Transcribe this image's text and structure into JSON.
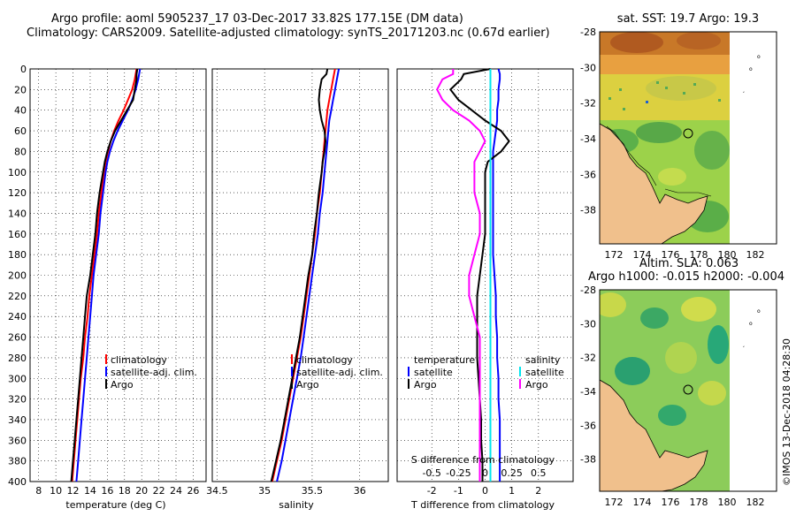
{
  "title": {
    "line1": "Argo profile: aoml 5905237_17 03-Dec-2017 33.82S 177.15E (DM data)",
    "line2": "Climatology: CARS2009. Satellite-adjusted climatology: synTS_20171203.nc (0.67d earlier)"
  },
  "colors": {
    "climatology": "#ff0000",
    "satellite": "#0000ff",
    "argo": "#000000",
    "sal_satellite": "#00e5ee",
    "sal_argo": "#ff00ff"
  },
  "chart_data": [
    {
      "type": "line",
      "id": "temperature",
      "xlabel": "temperature (deg C)",
      "ylabel": "",
      "xlim": [
        7,
        27.5
      ],
      "ylim": [
        400,
        0
      ],
      "xticks": [
        "8",
        "10",
        "12",
        "14",
        "16",
        "18",
        "20",
        "22",
        "24",
        "26"
      ],
      "xtick_values": [
        8,
        10,
        12,
        14,
        16,
        18,
        20,
        22,
        24,
        26
      ],
      "yticks": [
        "0",
        "20",
        "40",
        "60",
        "80",
        "100",
        "120",
        "140",
        "160",
        "180",
        "200",
        "220",
        "240",
        "260",
        "280",
        "300",
        "320",
        "340",
        "360",
        "380",
        "400"
      ],
      "ytick_values": [
        0,
        20,
        40,
        60,
        80,
        100,
        120,
        140,
        160,
        180,
        200,
        220,
        240,
        260,
        280,
        300,
        320,
        340,
        360,
        380,
        400
      ],
      "depth": [
        0,
        5,
        10,
        20,
        30,
        40,
        50,
        60,
        70,
        80,
        90,
        100,
        120,
        140,
        160,
        180,
        200,
        220,
        240,
        260,
        280,
        300,
        320,
        340,
        360,
        380,
        400
      ],
      "series": [
        {
          "name": "climatology",
          "color": "#ff0000",
          "values": [
            19.4,
            19.3,
            19.2,
            18.9,
            18.4,
            17.9,
            17.3,
            16.8,
            16.4,
            16.1,
            15.8,
            15.6,
            15.3,
            15.0,
            14.8,
            14.5,
            14.2,
            13.9,
            13.7,
            13.4,
            13.2,
            12.9,
            12.7,
            12.5,
            12.3,
            12.1,
            11.9
          ]
        },
        {
          "name": "satellite-adj. clim.",
          "color": "#0000ff",
          "values": [
            19.8,
            19.7,
            19.6,
            19.3,
            18.9,
            18.4,
            17.8,
            17.2,
            16.7,
            16.3,
            16.0,
            15.8,
            15.5,
            15.2,
            15.0,
            14.7,
            14.4,
            14.2,
            14.0,
            13.8,
            13.6,
            13.4,
            13.2,
            13.0,
            12.8,
            12.6,
            12.4
          ]
        },
        {
          "name": "Argo",
          "color": "#000000",
          "values": [
            19.5,
            19.4,
            19.4,
            19.2,
            19.0,
            18.3,
            17.6,
            16.9,
            16.4,
            16.0,
            15.7,
            15.5,
            15.1,
            14.8,
            14.6,
            14.3,
            14.0,
            13.6,
            13.4,
            13.2,
            13.0,
            12.8,
            12.6,
            12.4,
            12.2,
            12.0,
            11.8
          ]
        }
      ],
      "legend": [
        "climatology",
        "satellite-adj. clim.",
        "Argo"
      ]
    },
    {
      "type": "line",
      "id": "salinity",
      "xlabel": "salinity",
      "xlim": [
        34.45,
        36.3
      ],
      "ylim": [
        400,
        0
      ],
      "xticks": [
        "34.5",
        "35",
        "35.5",
        "36"
      ],
      "xtick_values": [
        34.5,
        35,
        35.5,
        36
      ],
      "depth": [
        0,
        5,
        10,
        20,
        30,
        40,
        50,
        60,
        70,
        80,
        90,
        100,
        120,
        140,
        160,
        180,
        200,
        220,
        240,
        260,
        280,
        300,
        320,
        340,
        360,
        380,
        400
      ],
      "series": [
        {
          "name": "climatology",
          "color": "#ff0000",
          "values": [
            35.74,
            35.73,
            35.72,
            35.7,
            35.68,
            35.66,
            35.65,
            35.64,
            35.63,
            35.62,
            35.61,
            35.6,
            35.58,
            35.55,
            35.53,
            35.5,
            35.47,
            35.44,
            35.41,
            35.38,
            35.34,
            35.3,
            35.26,
            35.22,
            35.18,
            35.13,
            35.08
          ]
        },
        {
          "name": "satellite-adj. clim.",
          "color": "#0000ff",
          "values": [
            35.78,
            35.77,
            35.76,
            35.74,
            35.72,
            35.7,
            35.68,
            35.67,
            35.66,
            35.65,
            35.64,
            35.63,
            35.61,
            35.58,
            35.56,
            35.53,
            35.5,
            35.47,
            35.44,
            35.41,
            35.38,
            35.34,
            35.3,
            35.26,
            35.22,
            35.18,
            35.13
          ]
        },
        {
          "name": "Argo",
          "color": "#000000",
          "values": [
            35.66,
            35.65,
            35.6,
            35.58,
            35.57,
            35.58,
            35.6,
            35.63,
            35.64,
            35.63,
            35.61,
            35.6,
            35.57,
            35.55,
            35.52,
            35.5,
            35.46,
            35.43,
            35.4,
            35.37,
            35.33,
            35.29,
            35.25,
            35.21,
            35.17,
            35.12,
            35.07
          ]
        }
      ],
      "legend": [
        "climatology",
        "satellite-adj. clim.",
        "Argo"
      ]
    },
    {
      "type": "line",
      "id": "difference",
      "xlabel": "T difference from climatology",
      "x2label": "S difference from climatology",
      "xlim": [
        -3.3,
        3.3
      ],
      "ylim": [
        400,
        0
      ],
      "xticks": [
        "-2",
        "-1",
        "0",
        "1",
        "2"
      ],
      "xtick_values": [
        -2,
        -1,
        0,
        1,
        2
      ],
      "x2ticks": [
        "-0.5",
        "-0.25",
        "0",
        "0.25",
        "0.5"
      ],
      "x2tick_values": [
        -0.5,
        -0.25,
        0,
        0.25,
        0.5
      ],
      "depth": [
        0,
        5,
        10,
        20,
        30,
        40,
        50,
        60,
        70,
        80,
        90,
        100,
        120,
        140,
        160,
        180,
        200,
        220,
        240,
        260,
        280,
        300,
        320,
        340,
        360,
        380,
        400
      ],
      "series": [
        {
          "name": "temperature satellite",
          "group": "temperature",
          "color": "#0000ff",
          "values": [
            0.5,
            0.55,
            0.55,
            0.5,
            0.5,
            0.45,
            0.45,
            0.4,
            0.35,
            0.3,
            0.3,
            0.3,
            0.3,
            0.3,
            0.3,
            0.3,
            0.35,
            0.4,
            0.4,
            0.45,
            0.45,
            0.5,
            0.5,
            0.55,
            0.55,
            0.55,
            0.55
          ]
        },
        {
          "name": "temperature Argo",
          "group": "temperature",
          "color": "#000000",
          "values": [
            0.2,
            -0.8,
            -0.9,
            -1.3,
            -1.0,
            -0.5,
            0.0,
            0.6,
            0.9,
            0.6,
            0.1,
            0.0,
            0.0,
            0.0,
            0.0,
            -0.1,
            -0.2,
            -0.3,
            -0.3,
            -0.3,
            -0.3,
            -0.25,
            -0.2,
            -0.15,
            -0.15,
            -0.1,
            -0.1
          ]
        },
        {
          "name": "salinity satellite",
          "group": "salinity",
          "color": "#00e5ee",
          "values": [
            0.05,
            0.05,
            0.05,
            0.05,
            0.05,
            0.05,
            0.05,
            0.05,
            0.05,
            0.05,
            0.05,
            0.05,
            0.05,
            0.05,
            0.05,
            0.05,
            0.05,
            0.05,
            0.05,
            0.05,
            0.05,
            0.05,
            0.05,
            0.05,
            0.05,
            0.05,
            0.05
          ]
        },
        {
          "name": "salinity Argo",
          "group": "salinity",
          "color": "#ff00ff",
          "values": [
            -0.3,
            -0.3,
            -0.4,
            -0.45,
            -0.4,
            -0.3,
            -0.15,
            -0.05,
            0.0,
            -0.05,
            -0.1,
            -0.1,
            -0.1,
            -0.05,
            -0.05,
            -0.1,
            -0.15,
            -0.15,
            -0.1,
            -0.05,
            -0.05,
            -0.05,
            -0.05,
            -0.05,
            -0.05,
            -0.05,
            -0.05
          ]
        }
      ],
      "legend": {
        "temperature_header": "temperature",
        "salinity_header": "salinity",
        "temperature": [
          "satellite",
          "Argo"
        ],
        "salinity": [
          "satellite",
          "Argo"
        ]
      }
    },
    {
      "type": "heatmap",
      "id": "sst-map",
      "title": "sat. SST: 19.7 Argo: 19.3",
      "xticks": [
        "172",
        "174",
        "176",
        "178",
        "180",
        "182"
      ],
      "xtick_values": [
        172,
        174,
        176,
        178,
        180,
        182
      ],
      "yticks": [
        "-28",
        "-30",
        "-32",
        "-34",
        "-36",
        "-38"
      ],
      "ytick_values": [
        -28,
        -30,
        -32,
        -34,
        -36,
        -38
      ],
      "xlim": [
        171,
        183.5
      ],
      "ylim": [
        -39.9,
        -28
      ],
      "float_position": [
        177.15,
        -33.82
      ]
    },
    {
      "type": "heatmap",
      "id": "sla-map",
      "title": "Altim. SLA: 0.063",
      "subtitle": "Argo h1000: -0.015 h2000: -0.004",
      "xticks": [
        "172",
        "174",
        "176",
        "178",
        "180",
        "182"
      ],
      "xtick_values": [
        172,
        174,
        176,
        178,
        180,
        182
      ],
      "yticks": [
        "-28",
        "-30",
        "-32",
        "-34",
        "-36",
        "-38"
      ],
      "ytick_values": [
        -28,
        -30,
        -32,
        -34,
        -36,
        -38
      ],
      "xlim": [
        171,
        183.5
      ],
      "ylim": [
        -39.9,
        -28
      ],
      "float_position": [
        177.15,
        -33.82
      ]
    }
  ],
  "watermark": "©IMOS 13-Dec-2018 04:28:30"
}
